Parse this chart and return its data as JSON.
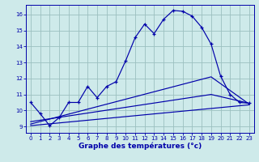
{
  "title": "Graphe des températures (°c)",
  "bg_color": "#ceeaea",
  "grid_color": "#9bbfbf",
  "line_color": "#0000aa",
  "xlim": [
    -0.5,
    23.5
  ],
  "ylim": [
    8.6,
    16.6
  ],
  "xticks": [
    0,
    1,
    2,
    3,
    4,
    5,
    6,
    7,
    8,
    9,
    10,
    11,
    12,
    13,
    14,
    15,
    16,
    17,
    18,
    19,
    20,
    21,
    22,
    23
  ],
  "yticks": [
    9,
    10,
    11,
    12,
    13,
    14,
    15,
    16
  ],
  "main_x": [
    0,
    1,
    2,
    3,
    4,
    5,
    6,
    7,
    8,
    9,
    10,
    11,
    12,
    13,
    14,
    15,
    16,
    17,
    18,
    19,
    20,
    21,
    22,
    23
  ],
  "main_y": [
    10.5,
    9.8,
    9.05,
    9.55,
    10.5,
    10.5,
    11.5,
    10.8,
    11.5,
    11.8,
    13.1,
    14.55,
    15.4,
    14.8,
    15.7,
    16.25,
    16.2,
    15.9,
    15.2,
    14.15,
    12.15,
    11.0,
    10.5,
    10.45
  ],
  "line2_x": [
    0,
    23
  ],
  "line2_y": [
    9.05,
    10.35
  ],
  "line3_x": [
    0,
    19,
    23
  ],
  "line3_y": [
    9.15,
    12.1,
    10.4
  ],
  "line4_x": [
    0,
    19,
    23
  ],
  "line4_y": [
    9.3,
    11.0,
    10.45
  ],
  "figsize": [
    3.2,
    2.0
  ],
  "dpi": 100
}
